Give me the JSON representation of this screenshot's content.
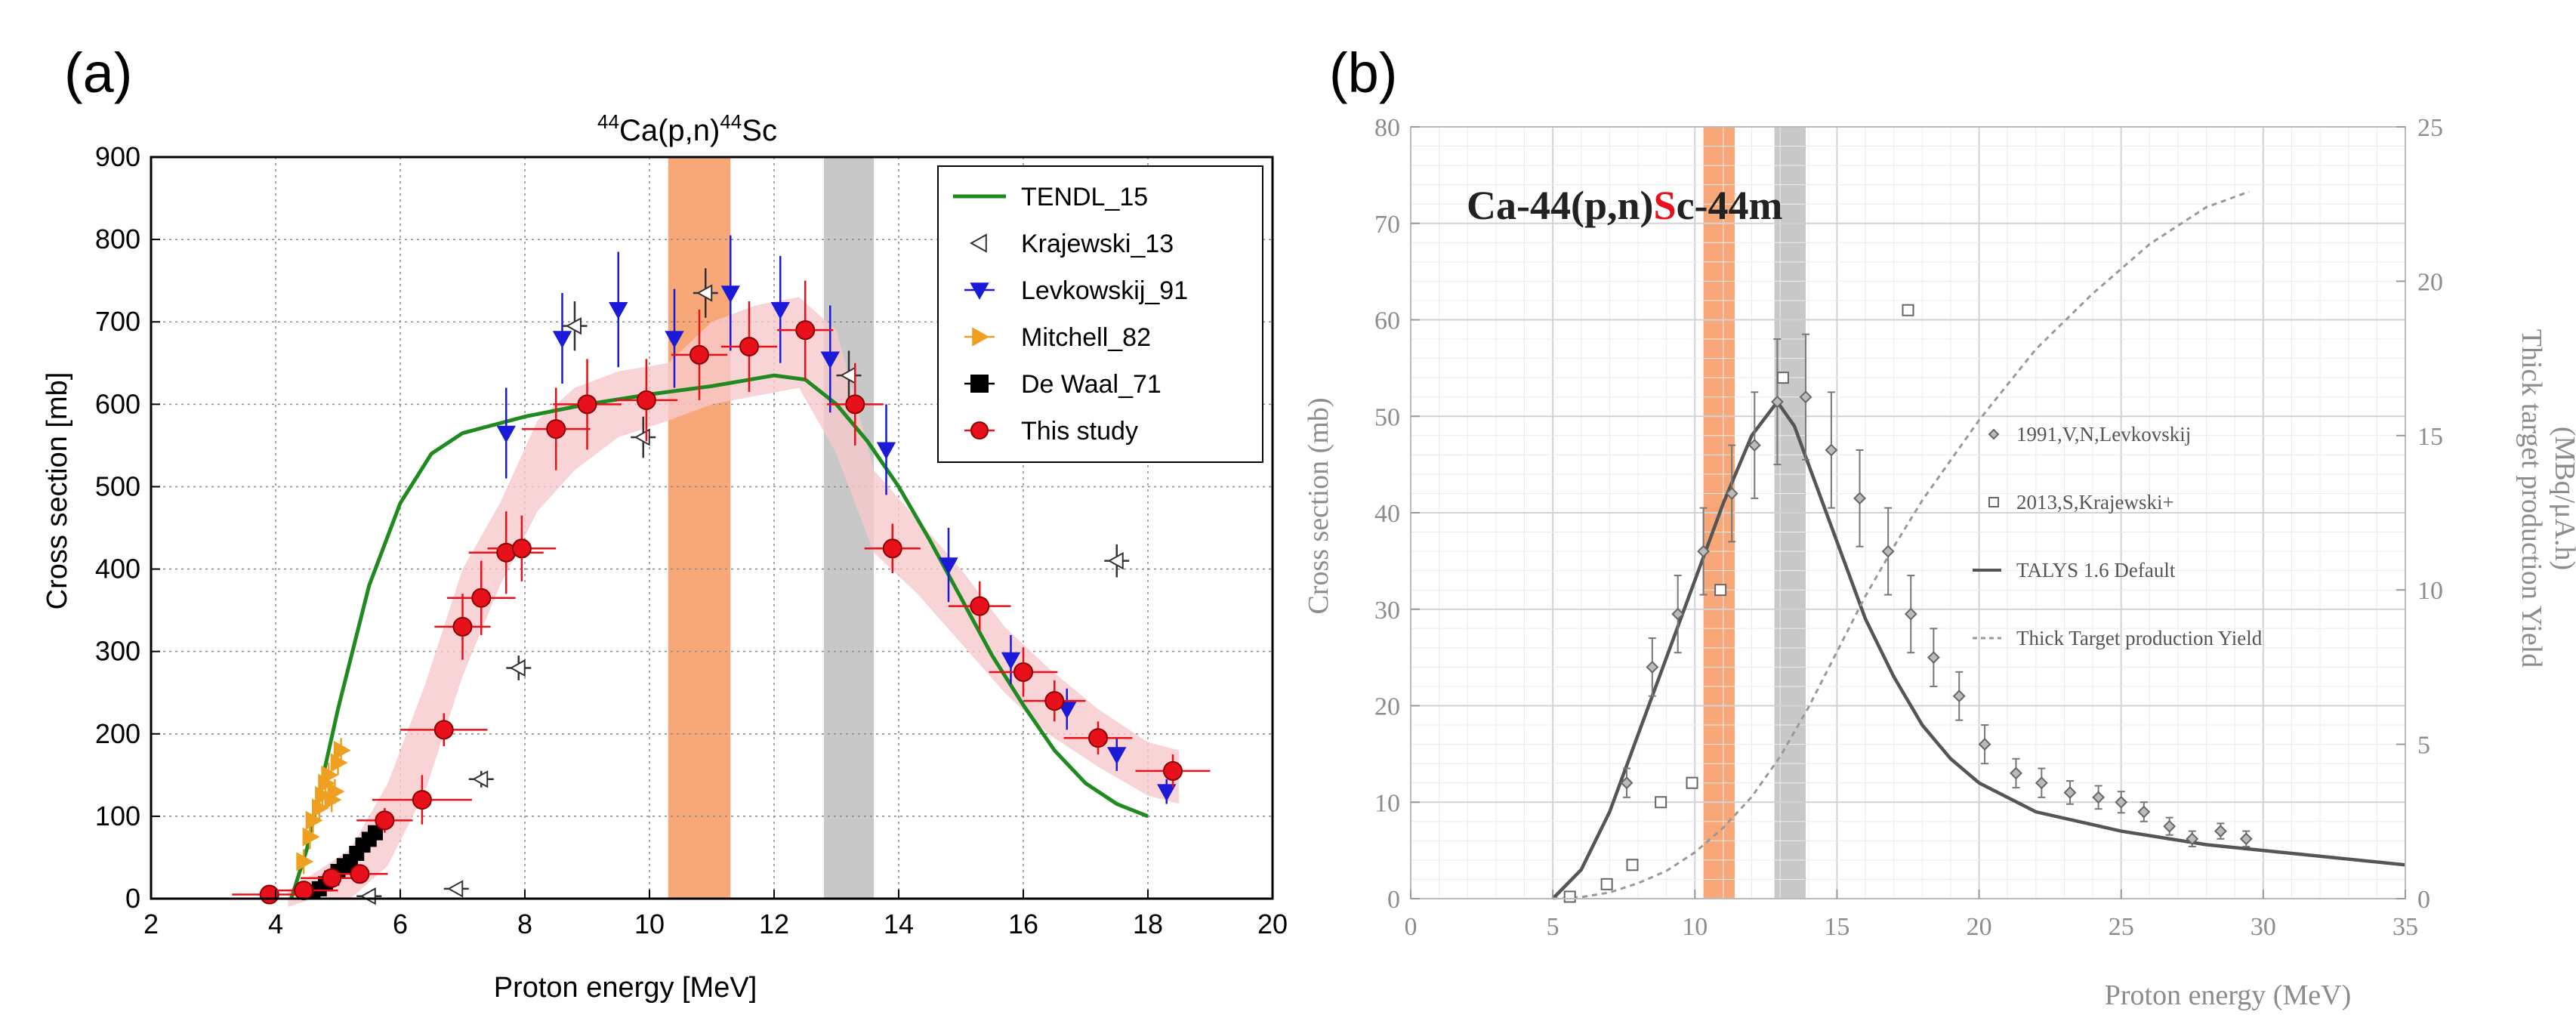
{
  "chart_data": [
    {
      "panel": "(a)",
      "type": "scatter",
      "title_pre": "44",
      "title_mid": "Ca(p,n)",
      "title_sup": "44",
      "title_post": "Sc",
      "xlabel": "Proton energy [MeV]",
      "ylabel": "Cross section [mb]",
      "xlim": [
        2,
        20
      ],
      "ylim": [
        0,
        900
      ],
      "xticks": [
        2,
        4,
        6,
        8,
        10,
        12,
        14,
        16,
        18,
        20
      ],
      "yticks": [
        0,
        100,
        200,
        300,
        400,
        500,
        600,
        700,
        800,
        900
      ],
      "grid": true,
      "legend_position": "top-right",
      "highlight_bands": [
        {
          "x0": 10.3,
          "x1": 11.3,
          "color": "#f8a878"
        },
        {
          "x0": 12.8,
          "x1": 13.6,
          "color": "#c8c8c8"
        }
      ],
      "tendl": {
        "name": "TENDL_15",
        "color": "#1f8a1f",
        "x": [
          4.25,
          4.5,
          5.0,
          5.5,
          6.0,
          6.5,
          7.0,
          7.5,
          8.0,
          9.0,
          10.0,
          11.0,
          12.0,
          12.5,
          13.0,
          13.5,
          14.0,
          14.5,
          15.0,
          15.5,
          16.0,
          16.5,
          17.0,
          17.5,
          18.0
        ],
        "y": [
          0,
          60,
          230,
          380,
          480,
          540,
          565,
          575,
          585,
          600,
          612,
          622,
          635,
          630,
          600,
          555,
          500,
          435,
          365,
          295,
          235,
          180,
          140,
          115,
          100
        ]
      },
      "band": {
        "color": "#f7c9cc",
        "x": [
          4.2,
          4.6,
          5.2,
          5.8,
          6.4,
          7.0,
          7.6,
          8.2,
          8.8,
          9.5,
          10.3,
          11.0,
          11.7,
          12.4,
          13.0,
          13.6,
          14.3,
          15.0,
          15.7,
          16.4,
          17.2,
          18.0,
          18.5
        ],
        "lower": [
          -10,
          0,
          0,
          40,
          130,
          270,
          380,
          470,
          520,
          560,
          580,
          600,
          610,
          620,
          540,
          420,
          370,
          310,
          250,
          200,
          160,
          125,
          115
        ],
        "upper": [
          10,
          30,
          60,
          140,
          260,
          400,
          480,
          580,
          620,
          640,
          650,
          700,
          720,
          730,
          690,
          520,
          460,
          400,
          330,
          280,
          230,
          190,
          180
        ]
      },
      "series": [
        {
          "name": "Krajewski_13",
          "marker": "triangle-left",
          "color": "#333333",
          "x": [
            5.5,
            6.9,
            7.3,
            7.9,
            8.8,
            9.9,
            10.9,
            13.2,
            17.5
          ],
          "y": [
            3,
            12,
            145,
            280,
            695,
            560,
            735,
            635,
            410
          ],
          "xerr": [
            0.2,
            0.2,
            0.2,
            0.2,
            0.2,
            0.2,
            0.2,
            0.2,
            0.2
          ],
          "yerr": [
            5,
            5,
            10,
            15,
            30,
            25,
            30,
            30,
            20
          ]
        },
        {
          "name": "Levkowskij_91",
          "marker": "triangle-down",
          "color": "#1a1ad8",
          "x": [
            7.7,
            8.6,
            9.5,
            10.4,
            11.3,
            12.1,
            12.9,
            13.8,
            14.8,
            15.8,
            16.7,
            17.5,
            18.3
          ],
          "y": [
            565,
            680,
            715,
            680,
            735,
            715,
            655,
            545,
            405,
            290,
            230,
            175,
            130
          ],
          "yerr": [
            55,
            55,
            70,
            60,
            70,
            65,
            65,
            55,
            45,
            30,
            25,
            20,
            15
          ]
        },
        {
          "name": "Mitchell_82",
          "marker": "triangle-right",
          "color": "#f0a020",
          "x": [
            4.45,
            4.55,
            4.6,
            4.7,
            4.75,
            4.8,
            4.85,
            4.9,
            4.95,
            5.0,
            5.05
          ],
          "y": [
            45,
            75,
            95,
            110,
            125,
            140,
            150,
            120,
            130,
            165,
            180
          ],
          "yerr": [
            15,
            15,
            15,
            15,
            15,
            15,
            15,
            15,
            15,
            15,
            15
          ]
        },
        {
          "name": "De Waal_71",
          "marker": "square",
          "color": "#000000",
          "x": [
            4.6,
            4.7,
            4.8,
            4.9,
            5.0,
            5.1,
            5.2,
            5.3,
            5.4,
            5.5,
            5.6
          ],
          "y": [
            8,
            12,
            18,
            25,
            33,
            40,
            45,
            55,
            65,
            72,
            80
          ],
          "yerr": [
            4,
            4,
            5,
            5,
            6,
            6,
            7,
            7,
            8,
            8,
            9
          ]
        },
        {
          "name": "This study",
          "marker": "circle",
          "color": "#e8101a",
          "x": [
            3.9,
            4.45,
            4.9,
            5.35,
            5.75,
            6.35,
            6.7,
            7.0,
            7.3,
            7.7,
            7.95,
            8.5,
            9.0,
            9.95,
            10.8,
            11.6,
            12.5,
            13.3,
            13.9,
            15.3,
            16.0,
            16.5,
            17.2,
            18.4
          ],
          "y": [
            5,
            10,
            25,
            30,
            95,
            120,
            205,
            330,
            365,
            420,
            425,
            570,
            600,
            605,
            660,
            670,
            690,
            600,
            425,
            355,
            275,
            240,
            195,
            155
          ],
          "xerr": [
            0.6,
            0.55,
            0.5,
            0.45,
            0.45,
            0.8,
            0.7,
            0.45,
            0.55,
            0.6,
            0.55,
            0.55,
            0.55,
            0.5,
            0.45,
            0.45,
            0.45,
            0.45,
            0.45,
            0.5,
            0.55,
            0.5,
            0.55,
            0.6
          ],
          "yerr": [
            5,
            8,
            10,
            10,
            15,
            30,
            20,
            40,
            45,
            50,
            40,
            50,
            55,
            50,
            55,
            55,
            60,
            50,
            30,
            30,
            30,
            25,
            20,
            20
          ]
        }
      ]
    },
    {
      "panel": "(b)",
      "type": "scatter",
      "title_black1": "Ca-44(p,n)",
      "title_red": "S",
      "title_black2": "c-44m",
      "xlabel": "Proton energy (MeV)",
      "ylabel": "Cross section (mb)",
      "y2label": "Thick target production Yield",
      "y2unit": "(MBq/μA.h)",
      "xlim": [
        0,
        35
      ],
      "ylim": [
        0,
        80
      ],
      "y2lim": [
        0,
        25
      ],
      "xticks": [
        0,
        5,
        10,
        15,
        20,
        25,
        30,
        35
      ],
      "yticks": [
        0,
        10,
        20,
        30,
        40,
        50,
        60,
        70,
        80
      ],
      "y2ticks": [
        0,
        5,
        10,
        15,
        20,
        25
      ],
      "grid": true,
      "highlight_bands": [
        {
          "x0": 10.3,
          "x1": 11.4,
          "color": "#f8a878"
        },
        {
          "x0": 12.8,
          "x1": 13.9,
          "color": "#c8c8c8"
        }
      ],
      "legend_items": [
        {
          "label": "1991,V,N,Levkovskij",
          "kind": "diamond"
        },
        {
          "label": "2013,S,Krajewski+",
          "kind": "square"
        },
        {
          "label": "TALYS 1.6 Default",
          "kind": "solid"
        },
        {
          "label": "Thick Target production Yield",
          "kind": "dashed"
        }
      ],
      "talys": {
        "name": "TALYS 1.6 Default",
        "x": [
          5.0,
          6.0,
          7.0,
          8.0,
          9.0,
          10.0,
          11.0,
          12.0,
          12.9,
          13.5,
          14.0,
          15.0,
          16.0,
          17.0,
          18.0,
          19.0,
          20.0,
          22.0,
          25.0,
          28.0,
          31.0,
          35.0
        ],
        "y": [
          0,
          3,
          9,
          17,
          25,
          33,
          41,
          48,
          51.5,
          49,
          45,
          37,
          29,
          23,
          18,
          14.5,
          12,
          9,
          7,
          5.6,
          4.7,
          3.5
        ]
      },
      "yield_curve": {
        "name": "Thick Target production Yield",
        "x": [
          5,
          6,
          7,
          8,
          9,
          10,
          11,
          12,
          13,
          14,
          15,
          16,
          17,
          18,
          20,
          22,
          24,
          26,
          28,
          29.5
        ],
        "y": [
          0,
          0.05,
          0.2,
          0.5,
          0.9,
          1.5,
          2.3,
          3.3,
          4.6,
          6.2,
          8.0,
          9.8,
          11.4,
          12.9,
          15.5,
          17.8,
          19.6,
          21.2,
          22.4,
          22.9
        ]
      },
      "series": [
        {
          "name": "1991,V,N,Levkovskij",
          "marker": "diamond",
          "x": [
            7.6,
            8.5,
            9.4,
            10.3,
            11.3,
            12.1,
            12.9,
            13.9,
            14.8,
            15.8,
            16.8,
            17.6,
            18.4,
            19.3,
            20.2,
            21.3,
            22.2,
            23.2,
            24.2,
            25.0,
            25.8,
            26.7,
            27.5,
            28.5,
            29.4
          ],
          "y": [
            12,
            24,
            29.5,
            36,
            42,
            47,
            51.5,
            52,
            46.5,
            41.5,
            36,
            29.5,
            25,
            21,
            16,
            13,
            12,
            11,
            10.5,
            10,
            9,
            7.5,
            6.2,
            7,
            6.2
          ],
          "yerr": [
            1.5,
            3,
            4,
            4.5,
            5,
            5.5,
            6.5,
            6.5,
            6,
            5,
            4.5,
            4,
            3,
            2.5,
            2,
            1.5,
            1.5,
            1.2,
            1.2,
            1.1,
            1.0,
            0.9,
            0.8,
            0.8,
            0.8
          ]
        },
        {
          "name": "2013,S,Krajewski+",
          "marker": "square",
          "x": [
            5.6,
            6.9,
            7.8,
            8.8,
            9.9,
            10.9,
            13.1,
            17.5
          ],
          "y": [
            0.2,
            1.5,
            3.5,
            10,
            12,
            32,
            54,
            61
          ]
        }
      ]
    }
  ]
}
